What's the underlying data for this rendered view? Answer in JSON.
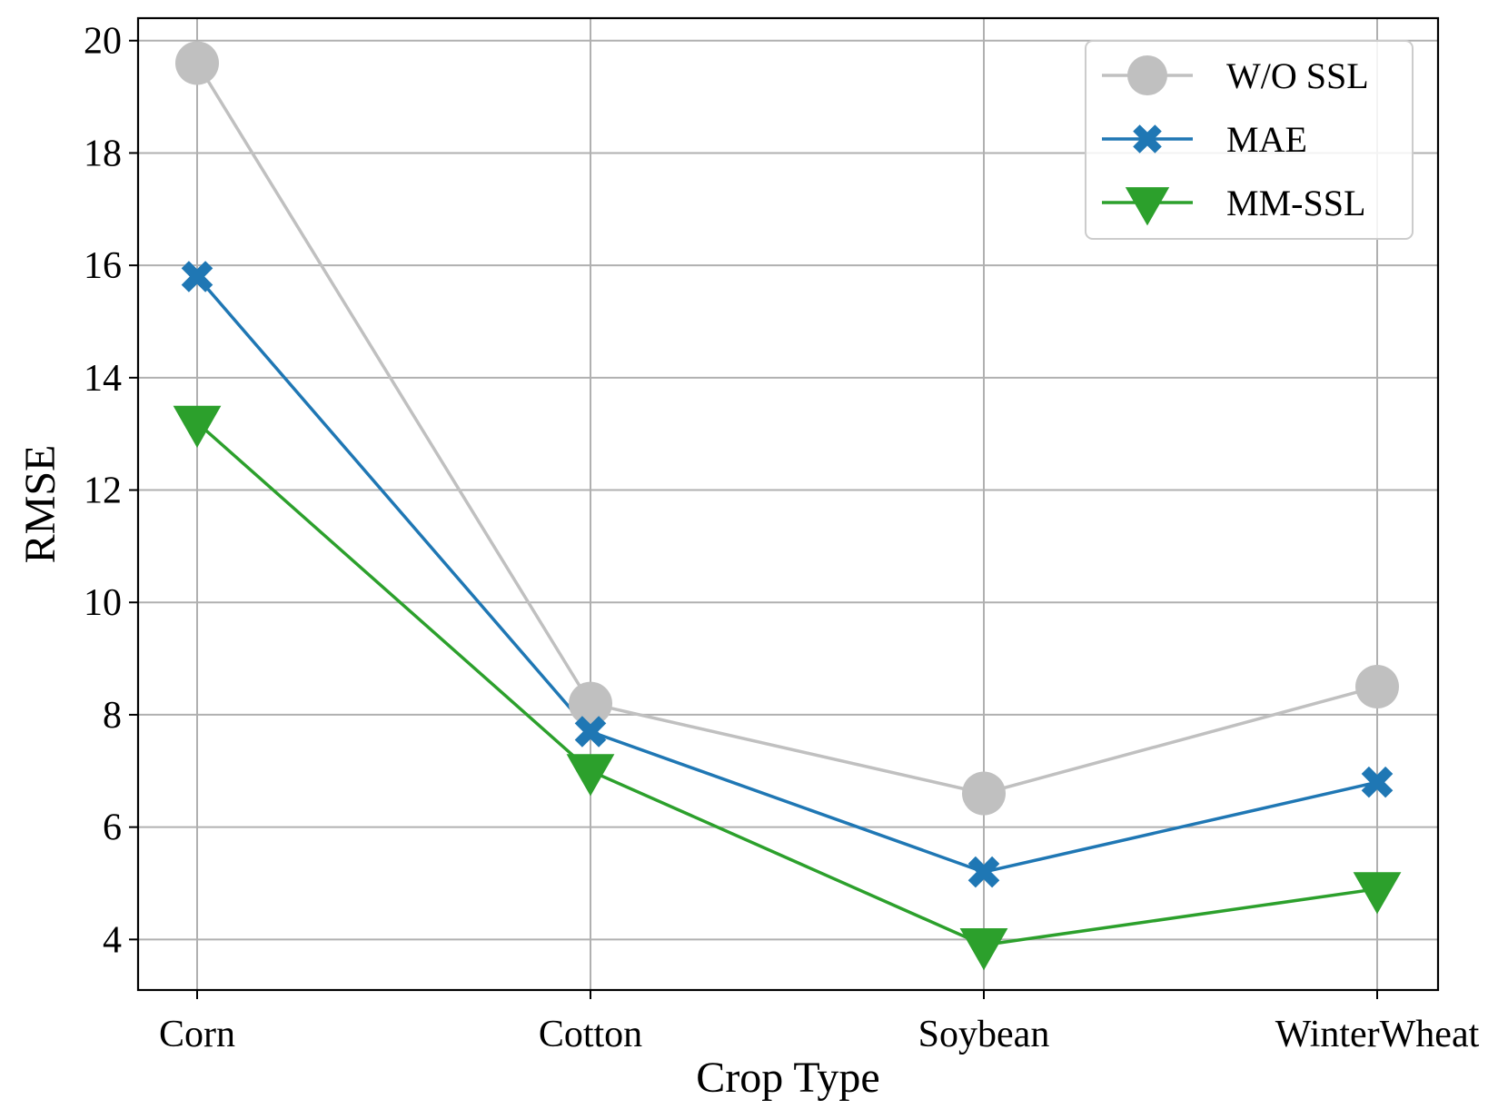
{
  "chart_data": {
    "type": "line",
    "title": "",
    "xlabel": "Crop Type",
    "ylabel": "RMSE",
    "categories": [
      "Corn",
      "Cotton",
      "Soybean",
      "WinterWheat"
    ],
    "ylim": [
      3.1,
      20.4
    ],
    "yticks": [
      4,
      6,
      8,
      10,
      12,
      14,
      16,
      18,
      20
    ],
    "ytick_labels": [
      "4",
      "6",
      "8",
      "10",
      "12",
      "14",
      "16",
      "18",
      "20"
    ],
    "grid": true,
    "legend_position": "top-right",
    "series": [
      {
        "name": "W/O SSL",
        "values": [
          19.6,
          8.2,
          6.6,
          8.5
        ],
        "color": "#c0c0c0",
        "marker": "circle"
      },
      {
        "name": "MAE",
        "values": [
          15.8,
          7.7,
          5.2,
          6.8
        ],
        "color": "#1f77b4",
        "marker": "x"
      },
      {
        "name": "MM-SSL",
        "values": [
          13.2,
          7.0,
          3.9,
          4.9
        ],
        "color": "#2ca02c",
        "marker": "triangle-down"
      }
    ]
  }
}
